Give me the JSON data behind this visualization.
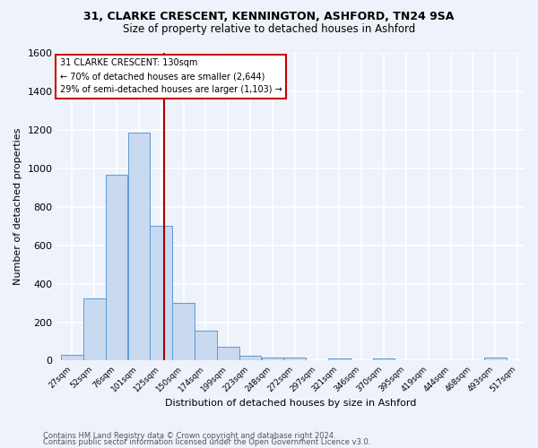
{
  "title1": "31, CLARKE CRESCENT, KENNINGTON, ASHFORD, TN24 9SA",
  "title2": "Size of property relative to detached houses in Ashford",
  "xlabel": "Distribution of detached houses by size in Ashford",
  "ylabel": "Number of detached properties",
  "bar_labels": [
    "27sqm",
    "52sqm",
    "76sqm",
    "101sqm",
    "125sqm",
    "150sqm",
    "174sqm",
    "199sqm",
    "223sqm",
    "248sqm",
    "272sqm",
    "297sqm",
    "321sqm",
    "346sqm",
    "370sqm",
    "395sqm",
    "419sqm",
    "444sqm",
    "468sqm",
    "493sqm",
    "517sqm"
  ],
  "bar_values": [
    30,
    325,
    965,
    1185,
    700,
    300,
    155,
    70,
    25,
    18,
    15,
    0,
    12,
    0,
    12,
    0,
    0,
    0,
    0,
    15,
    0
  ],
  "bar_color": "#c8d9f0",
  "bar_edge_color": "#5b9bd5",
  "ylim": [
    0,
    1600
  ],
  "yticks": [
    0,
    200,
    400,
    600,
    800,
    1000,
    1200,
    1400,
    1600
  ],
  "property_size": 130,
  "vline_color": "#aa0000",
  "annotation_line1": "31 CLARKE CRESCENT: 130sqm",
  "annotation_line2": "← 70% of detached houses are smaller (2,644)",
  "annotation_line3": "29% of semi-detached houses are larger (1,103) →",
  "annotation_box_color": "#cc0000",
  "background_color": "#eef2fa",
  "footer1": "Contains HM Land Registry data © Crown copyright and database right 2024.",
  "footer2": "Contains public sector information licensed under the Open Government Licence v3.0.",
  "grid_color": "#ffffff",
  "bin_width": 25
}
